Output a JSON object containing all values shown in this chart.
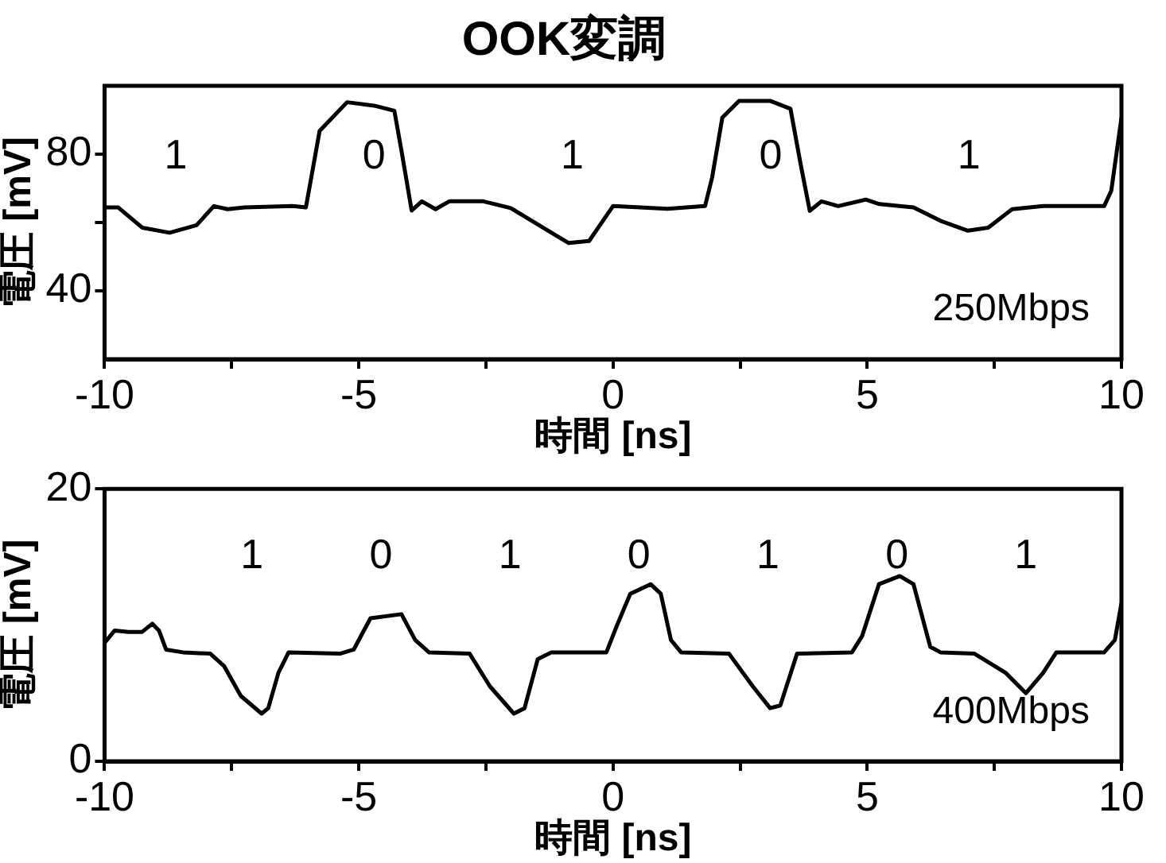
{
  "chart_data": [
    {
      "type": "line",
      "title": "OOK変調",
      "xlabel": "時間 [ns]",
      "ylabel": "電圧 [mV]",
      "color": "#000000",
      "grid": false,
      "legend": false,
      "marker": "none",
      "line_style": "solid",
      "x": [
        -10,
        -9.73,
        -9.26,
        -8.72,
        -8.19,
        -7.85,
        -7.58,
        -7.25,
        -6.3,
        -6.04,
        -5.77,
        -5.23,
        -4.7,
        -4.3,
        -4.16,
        -3.96,
        -3.76,
        -3.49,
        -3.22,
        -2.55,
        -2.01,
        -1.21,
        -0.87,
        -0.47,
        0,
        0.54,
        1.07,
        1.81,
        1.95,
        2.15,
        2.48,
        3.09,
        3.49,
        3.69,
        3.87,
        4.1,
        4.43,
        4.97,
        5.24,
        5.91,
        6.44,
        6.98,
        7.38,
        7.85,
        8.46,
        8.72,
        9.66,
        9.8,
        10
      ],
      "values": [
        64.4,
        64.4,
        58.5,
        57,
        59.2,
        64.8,
        63.9,
        64.4,
        64.8,
        64.4,
        86.8,
        95.2,
        94.2,
        92.7,
        81,
        63.5,
        66.2,
        63.9,
        66.2,
        66.2,
        64.2,
        57,
        54,
        54.6,
        64.8,
        64.4,
        64,
        64.8,
        73.2,
        90.7,
        95.6,
        95.6,
        93.3,
        77.1,
        63.4,
        66.2,
        64.8,
        66.7,
        65.4,
        64.4,
        60.5,
        57.6,
        58.5,
        63.9,
        64.8,
        64.8,
        64.8,
        69.3,
        90.7
      ],
      "xlim": [
        -10,
        10
      ],
      "xticks": [
        -10,
        {
          "value": -7.5,
          "label": null
        },
        -5,
        {
          "value": -2.5,
          "label": null
        },
        0,
        {
          "value": 2.5,
          "label": null
        },
        5,
        {
          "value": 7.5,
          "label": null
        },
        10
      ],
      "ylim": [
        20,
        100
      ],
      "yticks": [
        40,
        {
          "value": 60,
          "label": null
        },
        80
      ],
      "annotations": [
        "1",
        "0",
        "1",
        "0",
        "1",
        "250Mbps"
      ]
    },
    {
      "type": "line",
      "xlabel": "時間 [ns]",
      "ylabel": "電圧 [mV]",
      "color": "#000000",
      "grid": false,
      "legend": false,
      "marker": "none",
      "line_style": "solid",
      "x": [
        -10,
        -9.8,
        -9.53,
        -9.26,
        -9.06,
        -8.93,
        -8.79,
        -8.46,
        -7.92,
        -7.65,
        -7.32,
        -6.91,
        -6.78,
        -6.58,
        -6.38,
        -5.37,
        -5.1,
        -4.77,
        -4.16,
        -3.89,
        -3.62,
        -2.82,
        -2.42,
        -1.95,
        -1.74,
        -1.48,
        -1.21,
        -0.13,
        0.07,
        0.34,
        0.74,
        0.94,
        1.14,
        1.34,
        2.28,
        2.75,
        3.09,
        3.29,
        3.62,
        4.7,
        4.9,
        5.23,
        5.64,
        5.91,
        6.24,
        6.44,
        7.11,
        7.72,
        8.12,
        8.46,
        8.72,
        9.66,
        9.87,
        10
      ],
      "values": [
        8.7,
        9.6,
        9.5,
        9.5,
        10.1,
        9.6,
        8.2,
        8,
        7.9,
        7,
        4.8,
        3.5,
        3.9,
        6.5,
        8,
        7.9,
        8.2,
        10.5,
        10.8,
        8.9,
        8,
        7.9,
        5.5,
        3.5,
        3.9,
        7.5,
        8,
        8,
        9.9,
        12.3,
        13,
        12.3,
        8.9,
        8,
        7.9,
        5.5,
        3.9,
        4.1,
        7.9,
        8,
        9.2,
        13,
        13.6,
        13,
        8.4,
        8,
        7.9,
        6.5,
        5,
        6.5,
        8,
        8,
        8.9,
        11.6
      ],
      "xlim": [
        -10,
        10
      ],
      "xticks": [
        -10,
        {
          "value": -7.5,
          "label": null
        },
        -5,
        {
          "value": -2.5,
          "label": null
        },
        0,
        {
          "value": 2.5,
          "label": null
        },
        5,
        {
          "value": 7.5,
          "label": null
        },
        10
      ],
      "ylim": [
        0,
        20
      ],
      "yticks": [
        0,
        20
      ],
      "annotations": [
        "1",
        "0",
        "1",
        "0",
        "1",
        "0",
        "1",
        "400Mbps"
      ]
    }
  ]
}
